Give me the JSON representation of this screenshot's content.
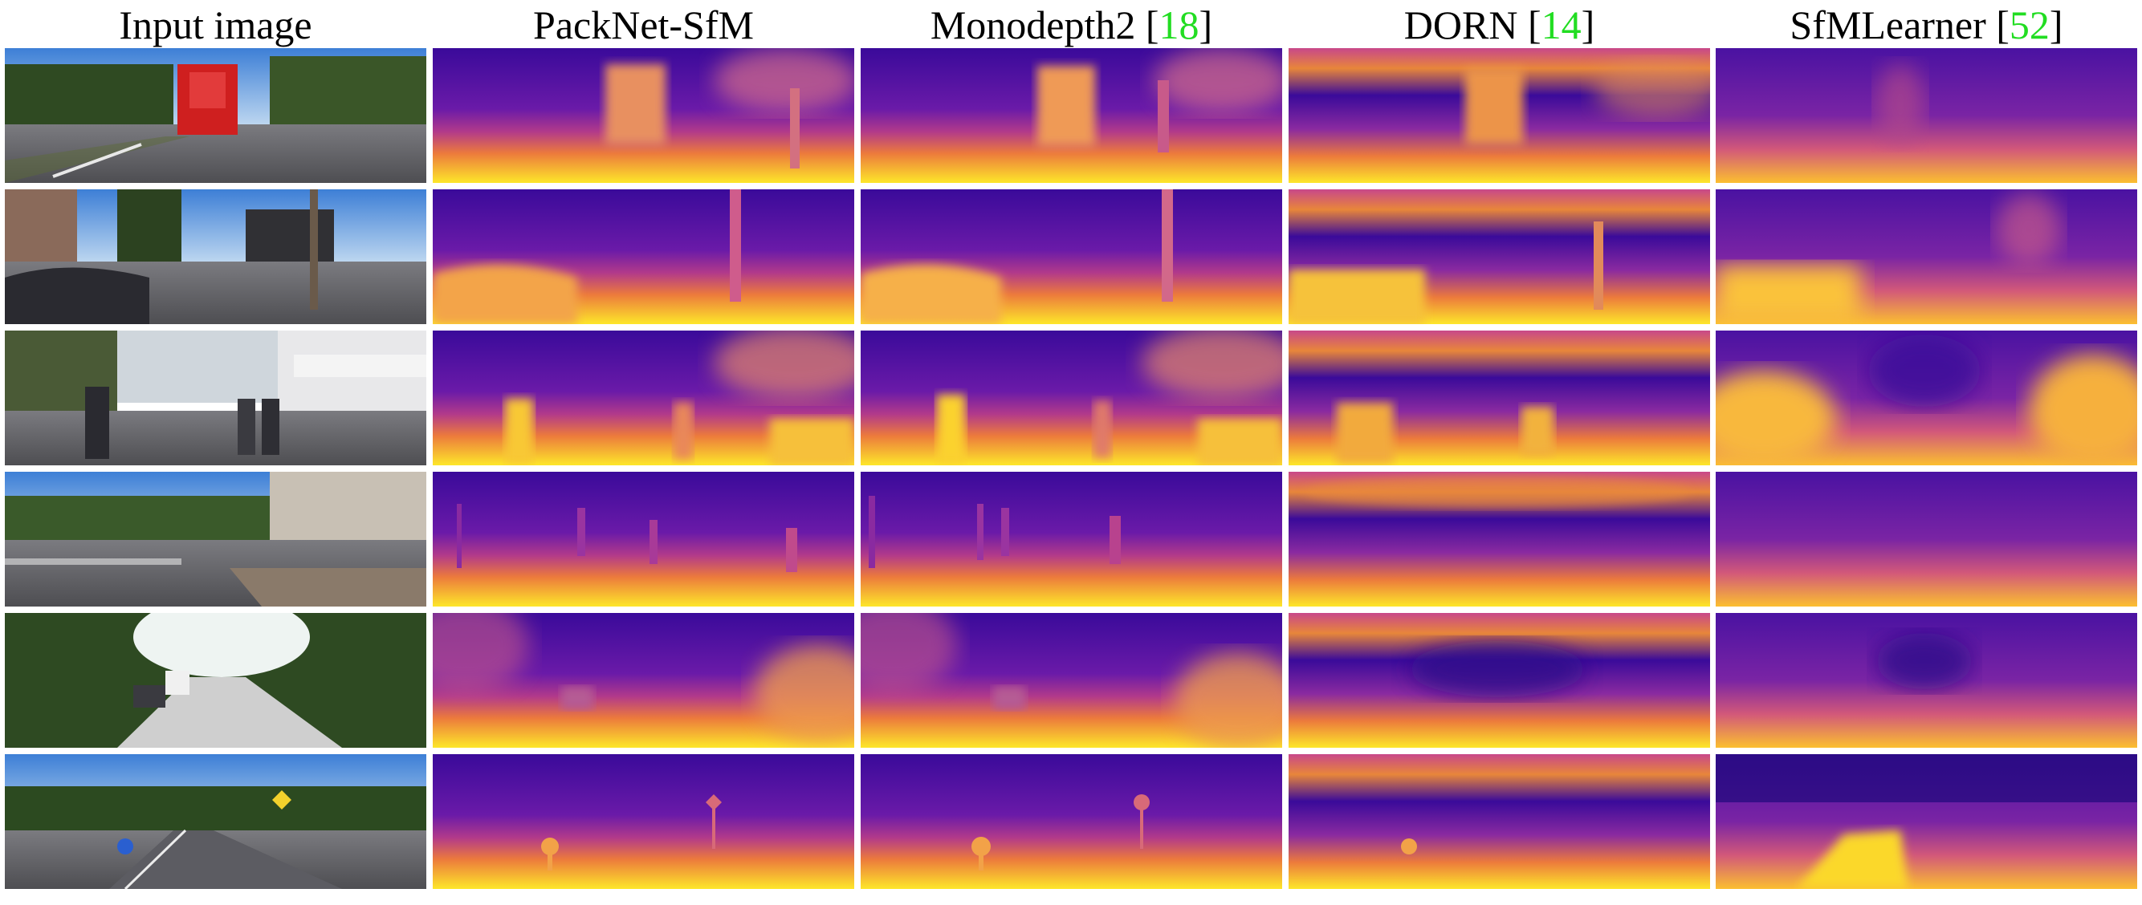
{
  "columns": [
    {
      "label": "Input image",
      "cite": ""
    },
    {
      "label": "PackNet-SfM",
      "cite": ""
    },
    {
      "label": "Monodepth2",
      "cite": "18"
    },
    {
      "label": "DORN",
      "cite": "14"
    },
    {
      "label": "SfMLearner",
      "cite": "52"
    }
  ],
  "colormap": {
    "far": "#2b0a8c",
    "mid": "#a42c92",
    "near": "#fbe42a"
  }
}
